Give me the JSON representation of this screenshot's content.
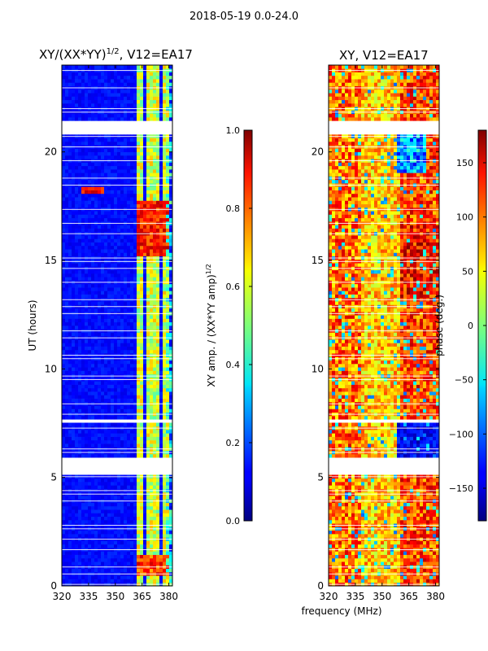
{
  "figure": {
    "suptitle": "2018-05-19 0.0-24.0",
    "shared_xlabel": "frequency (MHz)"
  },
  "chart_data": [
    {
      "type": "heatmap",
      "title": "XY/(XX*YY)^1/2, V12=EA17",
      "title_base": "XY/(XX*YY)",
      "title_exp": "1/2",
      "title_rest": ", V12=EA17",
      "xlabel": "frequency (MHz)",
      "ylabel": "UT (hours)",
      "xlim": [
        320,
        382
      ],
      "ylim": [
        0,
        24
      ],
      "xticks": [
        320,
        335,
        350,
        365,
        380
      ],
      "yticks": [
        0,
        5,
        10,
        15,
        20
      ],
      "colorbar": {
        "label": "XY amp. / (XX*YY amp)^1/2",
        "label_base": "XY amp. / (XX*YY amp)",
        "label_exp": "1/2",
        "range": [
          0.0,
          1.0
        ],
        "ticks": [
          "0.0",
          "0.2",
          "0.4",
          "0.6",
          "0.8",
          "1.0"
        ],
        "tick_values": [
          0.0,
          0.2,
          0.4,
          0.6,
          0.8,
          1.0
        ]
      },
      "flagged_hours": [
        [
          5.05,
          5.95
        ],
        [
          7.55,
          7.75
        ],
        [
          7.95,
          8.05
        ],
        [
          20.85,
          21.45
        ]
      ]
    },
    {
      "type": "heatmap",
      "title": "XY, V12=EA17",
      "xlabel": "frequency (MHz)",
      "ylabel": "",
      "xlim": [
        320,
        382
      ],
      "ylim": [
        0,
        24
      ],
      "xticks": [
        320,
        335,
        350,
        365,
        380
      ],
      "yticks": [
        0,
        5,
        10,
        15,
        20
      ],
      "colorbar": {
        "label": "phase (deg.)",
        "range": [
          -180,
          180
        ],
        "ticks": [
          "150",
          "100",
          "50",
          "0",
          "−50",
          "−100",
          "−150"
        ],
        "tick_values": [
          150,
          100,
          50,
          0,
          -50,
          -100,
          -150
        ]
      },
      "flagged_hours": [
        [
          5.05,
          5.95
        ],
        [
          7.55,
          7.75
        ],
        [
          7.95,
          8.05
        ],
        [
          20.85,
          21.45
        ]
      ]
    }
  ]
}
